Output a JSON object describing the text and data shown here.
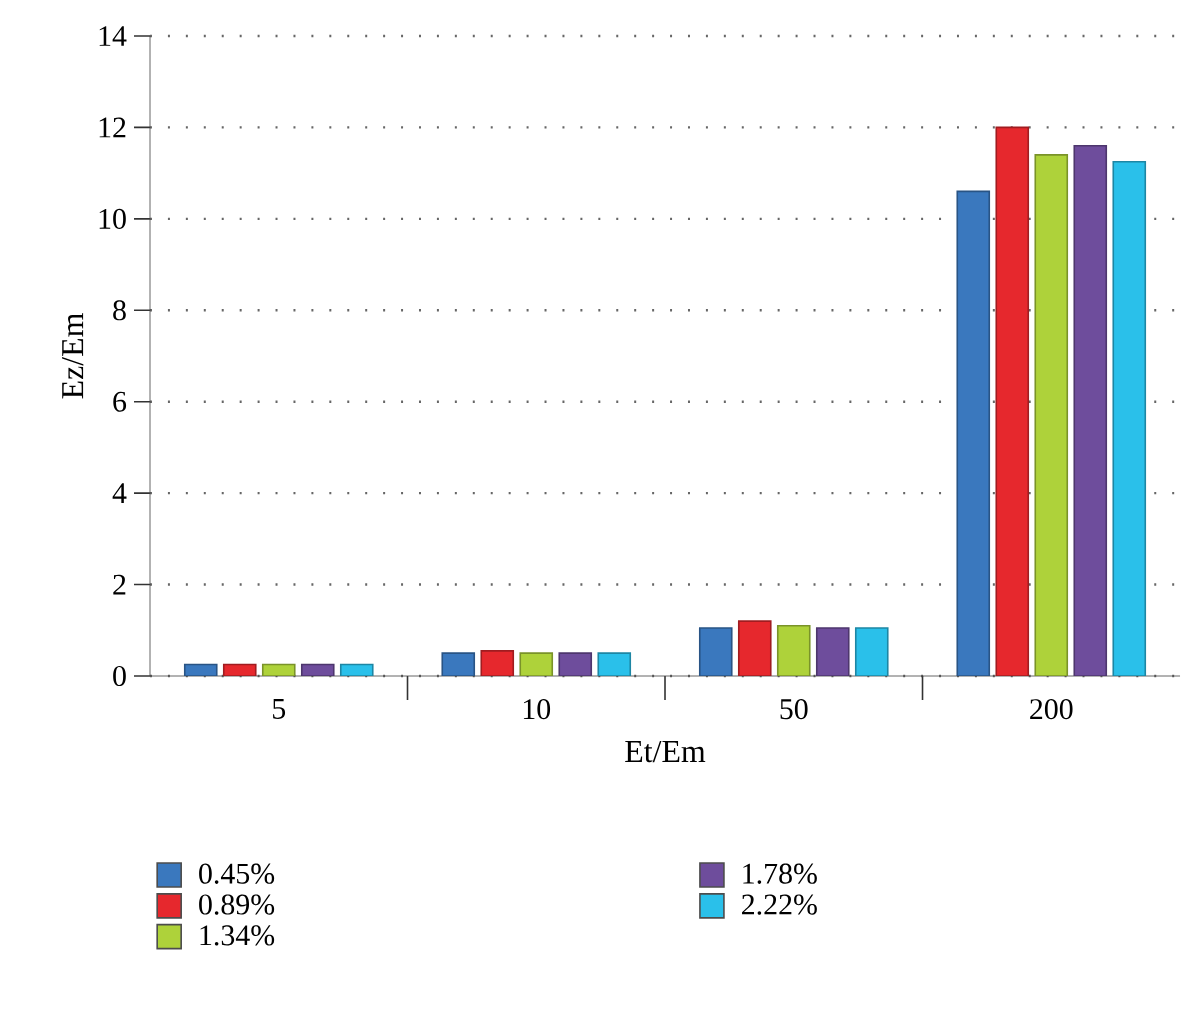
{
  "chart_data": {
    "type": "bar",
    "xlabel": "Et/Em",
    "ylabel": "Ez/Em",
    "categories": [
      "5",
      "10",
      "50",
      "200"
    ],
    "series": [
      {
        "name": "0.45%",
        "color": "#3a78be",
        "values": [
          0.25,
          0.5,
          1.05,
          10.6
        ]
      },
      {
        "name": "0.89%",
        "color": "#e6282d",
        "values": [
          0.25,
          0.55,
          1.2,
          12.0
        ]
      },
      {
        "name": "1.34%",
        "color": "#aed23a",
        "values": [
          0.25,
          0.5,
          1.1,
          11.4
        ]
      },
      {
        "name": "1.78%",
        "color": "#6e4d9c",
        "values": [
          0.25,
          0.5,
          1.05,
          11.6
        ]
      },
      {
        "name": "2.22%",
        "color": "#2ac0ea",
        "values": [
          0.25,
          0.5,
          1.05,
          11.25
        ]
      }
    ],
    "ylim": [
      0,
      14
    ],
    "yticks": [
      0,
      2,
      4,
      6,
      8,
      10,
      12,
      14
    ],
    "grid": "y",
    "legend": "bottom left"
  }
}
